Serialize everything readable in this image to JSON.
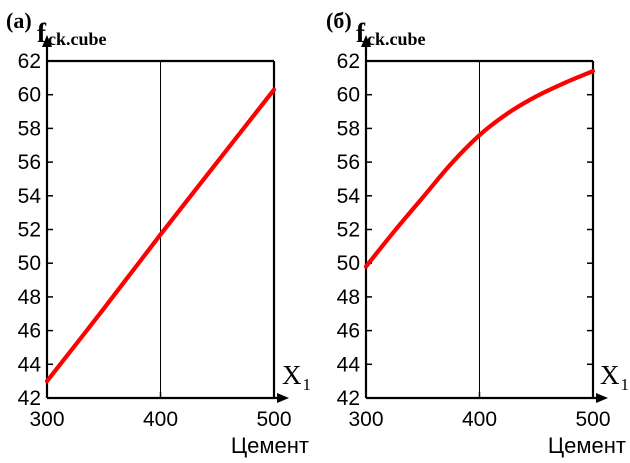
{
  "chart_data": [
    {
      "type": "line",
      "panel_label": "(а)",
      "ylabel_main": "f",
      "ylabel_sub": "ck.cube",
      "xsymbol_main": "X",
      "xsymbol_sub": "1",
      "xlabel": "Цемент",
      "xlim": [
        300,
        500
      ],
      "ylim": [
        42,
        62
      ],
      "xticks": [
        "300",
        "400",
        "500"
      ],
      "yticks": [
        "42",
        "44",
        "46",
        "48",
        "50",
        "52",
        "54",
        "56",
        "58",
        "60",
        "62"
      ],
      "grid_x": [
        400
      ],
      "series": [
        {
          "color": "#ff0000",
          "x": [
            300,
            350,
            400,
            450,
            500
          ],
          "y": [
            43.0,
            47.3,
            51.7,
            56.0,
            60.3
          ]
        }
      ]
    },
    {
      "type": "line",
      "panel_label": "(б)",
      "ylabel_main": "f",
      "ylabel_sub": "ck.cube",
      "xsymbol_main": "X",
      "xsymbol_sub": "1",
      "xlabel": "Цемент",
      "xlim": [
        300,
        500
      ],
      "ylim": [
        42,
        62
      ],
      "xticks": [
        "300",
        "400",
        "500"
      ],
      "yticks": [
        "42",
        "44",
        "46",
        "48",
        "50",
        "52",
        "54",
        "56",
        "58",
        "60",
        "62"
      ],
      "grid_x": [
        400
      ],
      "series": [
        {
          "color": "#ff0000",
          "x": [
            300,
            325,
            350,
            375,
            400,
            425,
            450,
            475,
            500
          ],
          "y": [
            49.8,
            51.9,
            53.9,
            55.9,
            57.6,
            58.9,
            59.9,
            60.7,
            61.4
          ]
        }
      ]
    }
  ]
}
